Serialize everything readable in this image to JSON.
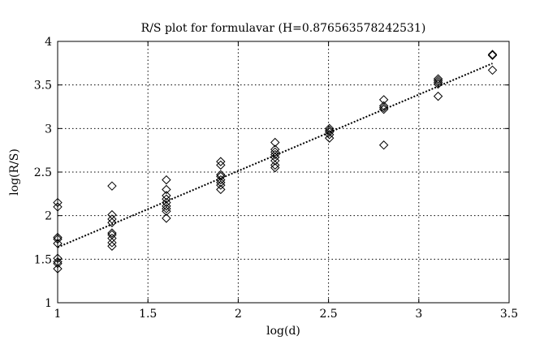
{
  "chart_data": {
    "type": "scatter",
    "title": "R/S plot for formulavar (H=0.876563578242531)",
    "xlabel": "log(d)",
    "ylabel": "log(R/S)",
    "xlim": [
      1,
      3.5
    ],
    "ylim": [
      1,
      4
    ],
    "xticks": [
      "1",
      "1.5",
      "2",
      "2.5",
      "3",
      "3.5"
    ],
    "yticks": [
      "1",
      "1.5",
      "2",
      "2.5",
      "3",
      "3.5",
      "4"
    ],
    "grid": true,
    "marker": "diamond",
    "points": [
      [
        1.0,
        2.15
      ],
      [
        1.0,
        2.1
      ],
      [
        1.0,
        1.75
      ],
      [
        1.0,
        1.73
      ],
      [
        1.0,
        1.68
      ],
      [
        1.0,
        1.51
      ],
      [
        1.0,
        1.47
      ],
      [
        1.0,
        1.45
      ],
      [
        1.0,
        1.39
      ],
      [
        1.301,
        2.34
      ],
      [
        1.301,
        2.01
      ],
      [
        1.301,
        1.96
      ],
      [
        1.301,
        1.92
      ],
      [
        1.301,
        1.8
      ],
      [
        1.301,
        1.78
      ],
      [
        1.301,
        1.74
      ],
      [
        1.301,
        1.69
      ],
      [
        1.301,
        1.65
      ],
      [
        1.602,
        2.41
      ],
      [
        1.602,
        2.3
      ],
      [
        1.602,
        2.23
      ],
      [
        1.602,
        2.19
      ],
      [
        1.602,
        2.15
      ],
      [
        1.602,
        2.11
      ],
      [
        1.602,
        2.08
      ],
      [
        1.602,
        2.05
      ],
      [
        1.602,
        1.97
      ],
      [
        1.903,
        2.62
      ],
      [
        1.903,
        2.58
      ],
      [
        1.903,
        2.47
      ],
      [
        1.903,
        2.45
      ],
      [
        1.903,
        2.41
      ],
      [
        1.903,
        2.38
      ],
      [
        1.903,
        2.35
      ],
      [
        1.903,
        2.3
      ],
      [
        2.204,
        2.84
      ],
      [
        2.204,
        2.76
      ],
      [
        2.204,
        2.73
      ],
      [
        2.204,
        2.7
      ],
      [
        2.204,
        2.67
      ],
      [
        2.204,
        2.63
      ],
      [
        2.204,
        2.58
      ],
      [
        2.204,
        2.55
      ],
      [
        2.505,
        3.0
      ],
      [
        2.505,
        2.98
      ],
      [
        2.505,
        2.96
      ],
      [
        2.505,
        2.93
      ],
      [
        2.505,
        2.89
      ],
      [
        2.806,
        3.33
      ],
      [
        2.806,
        3.26
      ],
      [
        2.806,
        3.24
      ],
      [
        2.806,
        3.22
      ],
      [
        2.806,
        2.81
      ],
      [
        3.107,
        3.57
      ],
      [
        3.107,
        3.55
      ],
      [
        3.107,
        3.53
      ],
      [
        3.107,
        3.51
      ],
      [
        3.107,
        3.37
      ],
      [
        3.408,
        3.85
      ],
      [
        3.408,
        3.84
      ],
      [
        3.408,
        3.67
      ]
    ],
    "fit_line": {
      "slope": 0.876563578242531,
      "intercept": 0.76,
      "x": [
        1.0,
        3.408
      ]
    }
  }
}
